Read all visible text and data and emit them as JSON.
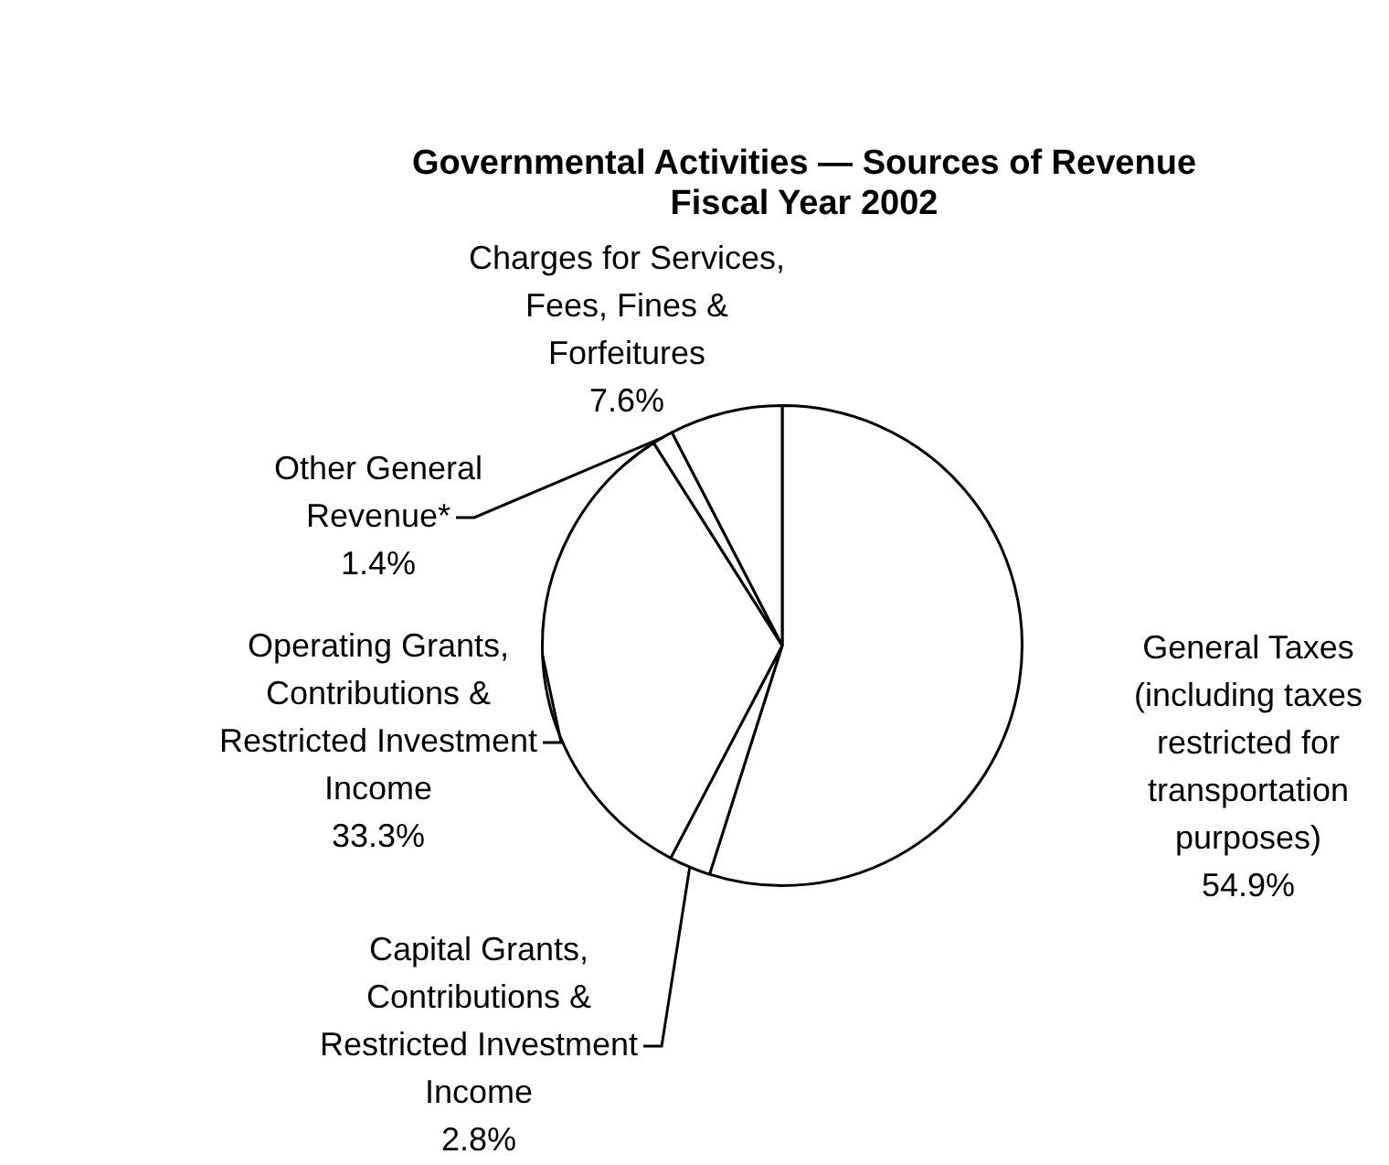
{
  "chart_data": {
    "type": "pie",
    "title": "Governmental Activities — Sources of Revenue",
    "subtitle": "Fiscal Year 2002",
    "categories": [
      "General Taxes\n(including taxes\nrestricted for\ntransportation\npurposes)",
      "Capital Grants,\nContributions &\nRestricted Investment\nIncome",
      "Operating Grants,\nContributions &\nRestricted Investment\nIncome",
      "Other General\nRevenue*",
      "Charges for Services,\nFees, Fines &\nForfeitures"
    ],
    "values": [
      54.9,
      2.8,
      33.3,
      1.4,
      7.6
    ],
    "colors": [
      "#ffffff",
      "#ffffff",
      "#ffffff",
      "#ffffff",
      "#ffffff"
    ],
    "value_labels": [
      "54.9%",
      "2.8%",
      "33.3%",
      "1.4%",
      "7.6%"
    ]
  }
}
